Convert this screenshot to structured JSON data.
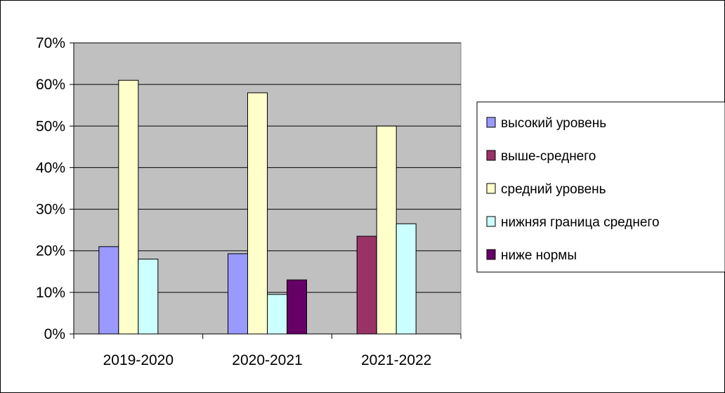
{
  "chart_data": {
    "type": "bar",
    "categories": [
      "2019-2020",
      "2020-2021",
      "2021-2022"
    ],
    "series": [
      {
        "name": "высокий уровень",
        "color": "#9999ff",
        "values": [
          21,
          19.3,
          0
        ]
      },
      {
        "name": "выше-среднего",
        "color": "#993366",
        "values": [
          0,
          0,
          23.5
        ]
      },
      {
        "name": "средний уровень",
        "color": "#ffffcc",
        "values": [
          61,
          58,
          50
        ]
      },
      {
        "name": "нижняя граница среднего",
        "color": "#ccffff",
        "values": [
          18,
          9.5,
          26.5
        ]
      },
      {
        "name": "ниже нормы",
        "color": "#660066",
        "values": [
          0,
          13,
          0
        ]
      }
    ],
    "ylim": [
      0,
      70
    ],
    "yticks": [
      0,
      10,
      20,
      30,
      40,
      50,
      60,
      70
    ],
    "ytick_labels": [
      "0%",
      "10%",
      "20%",
      "30%",
      "40%",
      "50%",
      "60%",
      "70%"
    ],
    "plot_background": "#c0c0c0",
    "grid": true,
    "legend_position": "right"
  }
}
